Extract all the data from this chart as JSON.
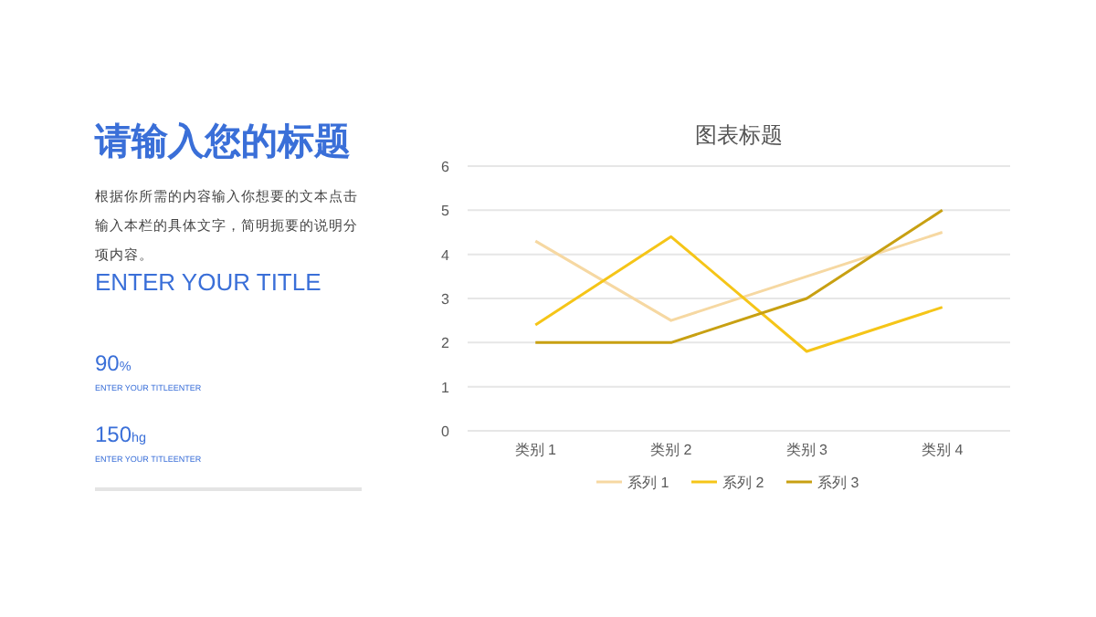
{
  "chart_data": {
    "type": "line",
    "title": "图表标题",
    "categories": [
      "类别 1",
      "类别 2",
      "类别 3",
      "类别 4"
    ],
    "series": [
      {
        "name": "系列 1",
        "color": "#f6d8a2",
        "values": [
          4.3,
          2.5,
          3.5,
          4.5
        ]
      },
      {
        "name": "系列 2",
        "color": "#f5c518",
        "values": [
          2.4,
          4.4,
          1.8,
          2.8
        ]
      },
      {
        "name": "系列 3",
        "color": "#c8a012",
        "values": [
          2,
          2,
          3,
          5
        ]
      }
    ],
    "ylim": [
      0,
      6
    ],
    "yticks": [
      0,
      1,
      2,
      3,
      4,
      5,
      6
    ],
    "grid": "y",
    "legend": "bottom",
    "marker": "none",
    "line_style": "solid",
    "annotations": [
      "请输入您的标题",
      "根据你所需的内容输入你想要的文本点击输入本栏的具体文字，简明扼要的说明分项内容。",
      "ENTER YOUR TITLE",
      "90%",
      "ENTER YOUR TITLEENTER",
      "150hg",
      "ENTER YOUR TITLEENTER"
    ]
  }
}
